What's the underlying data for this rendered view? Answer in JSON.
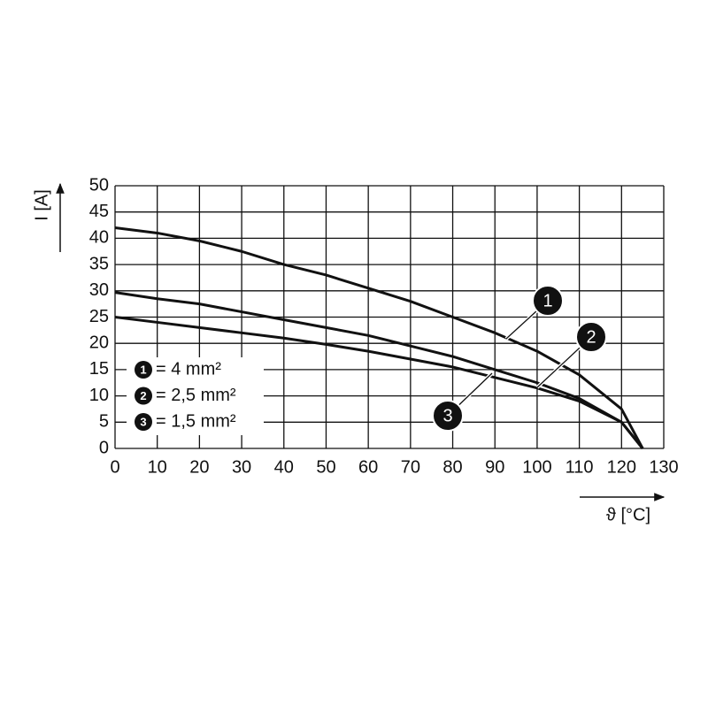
{
  "chart_data": {
    "type": "line",
    "x_label": "ϑ [°C]",
    "y_label": "I [A]",
    "x": [
      0,
      10,
      20,
      30,
      40,
      50,
      60,
      70,
      80,
      90,
      100,
      110,
      120,
      125
    ],
    "series": [
      {
        "label": "1",
        "name": "= 4 mm²",
        "color": "#111111",
        "values": [
          42,
          41,
          39.5,
          37.5,
          35,
          33,
          30.5,
          28,
          25,
          22,
          18.5,
          14,
          7.5,
          0
        ]
      },
      {
        "label": "2",
        "name": "= 2,5 mm²",
        "color": "#111111",
        "values": [
          29.7,
          28.5,
          27.5,
          26,
          24.5,
          23,
          21.5,
          19.5,
          17.5,
          15,
          12.5,
          9.5,
          5,
          0
        ]
      },
      {
        "label": "3",
        "name": "= 1,5 mm²",
        "color": "#111111",
        "values": [
          25,
          24,
          23,
          22,
          21,
          19.8,
          18.5,
          17,
          15.5,
          13.5,
          11.5,
          9,
          5,
          0
        ]
      }
    ],
    "xlim": [
      0,
      130
    ],
    "xticks": [
      0,
      10,
      20,
      30,
      40,
      50,
      60,
      70,
      80,
      90,
      100,
      110,
      120,
      130
    ],
    "ylim": [
      0,
      50
    ],
    "yticks": [
      0,
      5,
      10,
      15,
      20,
      25,
      30,
      35,
      40,
      45,
      50
    ],
    "grid": true
  }
}
